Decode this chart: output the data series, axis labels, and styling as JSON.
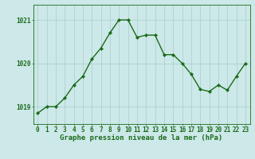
{
  "x": [
    0,
    1,
    2,
    3,
    4,
    5,
    6,
    7,
    8,
    9,
    10,
    11,
    12,
    13,
    14,
    15,
    16,
    17,
    18,
    19,
    20,
    21,
    22,
    23
  ],
  "y": [
    1018.85,
    1019.0,
    1019.0,
    1019.2,
    1019.5,
    1019.7,
    1020.1,
    1020.35,
    1020.7,
    1021.0,
    1021.0,
    1020.6,
    1020.65,
    1020.65,
    1020.2,
    1020.2,
    1020.0,
    1019.75,
    1019.4,
    1019.35,
    1019.5,
    1019.38,
    1019.7,
    1020.0
  ],
  "line_color": "#1a6b1a",
  "marker": "D",
  "marker_size": 2.2,
  "bg_color": "#cce8e8",
  "grid_color": "#aacccc",
  "axis_color": "#1a6b1a",
  "xlabel": "Graphe pression niveau de la mer (hPa)",
  "xlabel_fontsize": 6.5,
  "ylim": [
    1018.6,
    1021.35
  ],
  "yticks": [
    1019,
    1020,
    1021
  ],
  "xticks": [
    0,
    1,
    2,
    3,
    4,
    5,
    6,
    7,
    8,
    9,
    10,
    11,
    12,
    13,
    14,
    15,
    16,
    17,
    18,
    19,
    20,
    21,
    22,
    23
  ],
  "tick_fontsize": 5.5,
  "line_width": 1.0
}
